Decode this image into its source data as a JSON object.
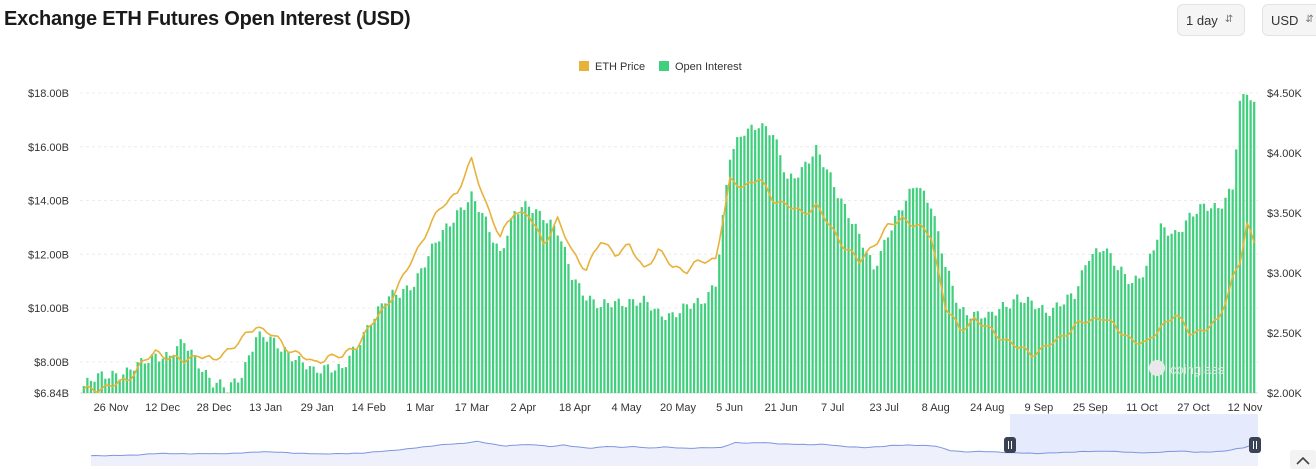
{
  "page": {
    "title": "Exchange ETH Futures Open Interest (USD)",
    "interval_select": "1 day",
    "currency_select": "USD",
    "watermark": "coinglass"
  },
  "colors": {
    "price": "#e8b23a",
    "open_interest": "#3fcf7d",
    "navigator_line": "#7c95e0",
    "navigator_fill": "#dfe6fb"
  },
  "chart_data": {
    "type": "bar",
    "title": "Exchange ETH Futures Open Interest (USD)",
    "x_tick_labels": [
      "26 Nov",
      "12 Dec",
      "28 Dec",
      "13 Jan",
      "29 Jan",
      "14 Feb",
      "1 Mar",
      "17 Mar",
      "2 Apr",
      "18 Apr",
      "4 May",
      "20 May",
      "5 Jun",
      "21 Jun",
      "7 Jul",
      "23 Jul",
      "8 Aug",
      "24 Aug",
      "9 Sep",
      "25 Sep",
      "11 Oct",
      "27 Oct",
      "12 Nov"
    ],
    "y_left": {
      "label": "Open Interest",
      "range": [
        6.84,
        18.0
      ],
      "tick_labels": [
        "$6.84B",
        "$8.00B",
        "$10.00B",
        "$12.00B",
        "$14.00B",
        "$16.00B",
        "$18.00B"
      ],
      "tick_values": [
        6.84,
        8,
        10,
        12,
        14,
        16,
        18
      ]
    },
    "y_right": {
      "label": "ETH Price",
      "range": [
        2000,
        4500
      ],
      "tick_labels": [
        "$2.00K",
        "$2.50K",
        "$3.00K",
        "$3.50K",
        "$4.00K",
        "$4.50K"
      ],
      "tick_values": [
        2000,
        2500,
        3000,
        3500,
        4000,
        4500
      ]
    },
    "legend": [
      "ETH Price",
      "Open Interest"
    ],
    "legend_position": "top-center",
    "grid": true,
    "series": [
      {
        "name": "Open Interest",
        "type": "bar",
        "axis": "left",
        "unit": "USD billions",
        "anchors": [
          [
            0,
            7.1
          ],
          [
            4,
            7.4
          ],
          [
            8,
            7.6
          ],
          [
            12,
            7.6
          ],
          [
            16,
            7.9
          ],
          [
            20,
            8.3
          ],
          [
            24,
            8.2
          ],
          [
            28,
            8.7
          ],
          [
            32,
            8.0
          ],
          [
            36,
            7.2
          ],
          [
            40,
            6.95
          ],
          [
            44,
            7.6
          ],
          [
            48,
            8.9
          ],
          [
            52,
            8.8
          ],
          [
            56,
            8.5
          ],
          [
            60,
            8.0
          ],
          [
            64,
            7.6
          ],
          [
            68,
            7.9
          ],
          [
            72,
            7.7
          ],
          [
            76,
            8.5
          ],
          [
            80,
            9.6
          ],
          [
            84,
            10.3
          ],
          [
            88,
            10.5
          ],
          [
            92,
            11.0
          ],
          [
            96,
            11.9
          ],
          [
            100,
            12.8
          ],
          [
            104,
            13.6
          ],
          [
            108,
            14.1
          ],
          [
            112,
            13.2
          ],
          [
            116,
            12.1
          ],
          [
            120,
            13.5
          ],
          [
            124,
            13.8
          ],
          [
            128,
            13.5
          ],
          [
            132,
            12.8
          ],
          [
            136,
            11.2
          ],
          [
            140,
            10.5
          ],
          [
            144,
            10.0
          ],
          [
            148,
            10.2
          ],
          [
            152,
            10.3
          ],
          [
            156,
            10.2
          ],
          [
            160,
            9.8
          ],
          [
            164,
            9.8
          ],
          [
            168,
            10.0
          ],
          [
            172,
            10.2
          ],
          [
            176,
            11.0
          ],
          [
            180,
            15.6
          ],
          [
            184,
            16.6
          ],
          [
            188,
            16.9
          ],
          [
            192,
            16.4
          ],
          [
            196,
            14.8
          ],
          [
            200,
            15.2
          ],
          [
            204,
            15.8
          ],
          [
            208,
            14.9
          ],
          [
            212,
            13.8
          ],
          [
            216,
            12.6
          ],
          [
            220,
            11.5
          ],
          [
            224,
            12.8
          ],
          [
            228,
            13.7
          ],
          [
            232,
            14.7
          ],
          [
            236,
            13.9
          ],
          [
            240,
            11.5
          ],
          [
            244,
            10.0
          ],
          [
            248,
            9.8
          ],
          [
            252,
            9.6
          ],
          [
            256,
            10.1
          ],
          [
            260,
            10.4
          ],
          [
            264,
            10.1
          ],
          [
            268,
            9.9
          ],
          [
            272,
            10.2
          ],
          [
            276,
            10.4
          ],
          [
            280,
            12.0
          ],
          [
            284,
            12.3
          ],
          [
            288,
            11.4
          ],
          [
            292,
            11.0
          ],
          [
            296,
            11.5
          ],
          [
            300,
            12.9
          ],
          [
            304,
            12.8
          ],
          [
            308,
            13.4
          ],
          [
            312,
            13.7
          ],
          [
            316,
            13.8
          ],
          [
            320,
            14.5
          ],
          [
            322,
            17.5
          ],
          [
            324,
            18.0
          ],
          [
            326,
            17.5
          ]
        ]
      },
      {
        "name": "ETH Price",
        "type": "line",
        "axis": "right",
        "unit": "USD",
        "anchors": [
          [
            0,
            2020
          ],
          [
            4,
            2040
          ],
          [
            8,
            2060
          ],
          [
            12,
            2110
          ],
          [
            16,
            2240
          ],
          [
            20,
            2340
          ],
          [
            24,
            2300
          ],
          [
            28,
            2260
          ],
          [
            32,
            2330
          ],
          [
            36,
            2260
          ],
          [
            40,
            2360
          ],
          [
            44,
            2440
          ],
          [
            48,
            2560
          ],
          [
            52,
            2500
          ],
          [
            56,
            2380
          ],
          [
            60,
            2330
          ],
          [
            64,
            2240
          ],
          [
            68,
            2310
          ],
          [
            72,
            2300
          ],
          [
            76,
            2400
          ],
          [
            80,
            2560
          ],
          [
            84,
            2720
          ],
          [
            88,
            2910
          ],
          [
            92,
            3140
          ],
          [
            96,
            3380
          ],
          [
            100,
            3560
          ],
          [
            104,
            3680
          ],
          [
            108,
            3930
          ],
          [
            112,
            3590
          ],
          [
            116,
            3290
          ],
          [
            120,
            3520
          ],
          [
            124,
            3480
          ],
          [
            128,
            3240
          ],
          [
            132,
            3450
          ],
          [
            136,
            3170
          ],
          [
            140,
            3040
          ],
          [
            144,
            3260
          ],
          [
            148,
            3170
          ],
          [
            152,
            3220
          ],
          [
            156,
            3040
          ],
          [
            160,
            3180
          ],
          [
            164,
            3060
          ],
          [
            168,
            3020
          ],
          [
            172,
            3100
          ],
          [
            176,
            3120
          ],
          [
            180,
            3760
          ],
          [
            184,
            3730
          ],
          [
            188,
            3780
          ],
          [
            192,
            3620
          ],
          [
            196,
            3560
          ],
          [
            200,
            3500
          ],
          [
            204,
            3560
          ],
          [
            208,
            3380
          ],
          [
            212,
            3220
          ],
          [
            216,
            3090
          ],
          [
            220,
            3240
          ],
          [
            224,
            3380
          ],
          [
            228,
            3460
          ],
          [
            232,
            3390
          ],
          [
            236,
            3310
          ],
          [
            240,
            2720
          ],
          [
            244,
            2520
          ],
          [
            248,
            2620
          ],
          [
            252,
            2530
          ],
          [
            256,
            2460
          ],
          [
            260,
            2380
          ],
          [
            264,
            2330
          ],
          [
            268,
            2380
          ],
          [
            272,
            2460
          ],
          [
            276,
            2560
          ],
          [
            280,
            2600
          ],
          [
            284,
            2640
          ],
          [
            288,
            2520
          ],
          [
            292,
            2450
          ],
          [
            296,
            2400
          ],
          [
            300,
            2560
          ],
          [
            304,
            2650
          ],
          [
            308,
            2510
          ],
          [
            312,
            2520
          ],
          [
            316,
            2600
          ],
          [
            320,
            2960
          ],
          [
            322,
            3080
          ],
          [
            324,
            3400
          ],
          [
            326,
            3250
          ]
        ]
      }
    ],
    "navigator": {
      "type": "area",
      "selected_range": "last ~30% of period"
    }
  }
}
